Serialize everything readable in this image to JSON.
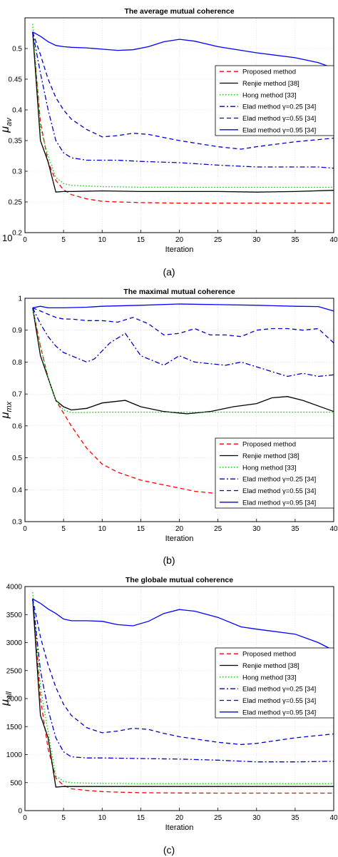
{
  "chart_data": [
    {
      "type": "line",
      "title": "The average mutual coherence",
      "xlabel": "Iteration",
      "ylabel": "μ_av",
      "caption": "(a)",
      "stray_text": "10",
      "xlim": [
        0,
        40
      ],
      "ylim": [
        0.2,
        0.55
      ],
      "xticks": [
        "0",
        "5",
        "10",
        "15",
        "20",
        "25",
        "30",
        "35",
        "40"
      ],
      "yticks": [
        "0.2",
        "0.25",
        "0.3",
        "0.35",
        "0.4",
        "0.45",
        "0.5"
      ],
      "grid": true,
      "legend_position": "right",
      "series": [
        {
          "name": "Proposed method",
          "color": "#ff0000",
          "dash": "dashed",
          "x": [
            1,
            2,
            3,
            4,
            5,
            6,
            8,
            10,
            12,
            15,
            20,
            25,
            30,
            35,
            40
          ],
          "y": [
            0.527,
            0.38,
            0.315,
            0.285,
            0.27,
            0.262,
            0.255,
            0.251,
            0.25,
            0.249,
            0.248,
            0.248,
            0.248,
            0.248,
            0.248
          ]
        },
        {
          "name": "Renjie method [38]",
          "color": "#000000",
          "dash": "solid",
          "x": [
            1,
            2,
            3,
            4,
            5,
            6,
            10,
            15,
            20,
            25,
            30,
            35,
            40
          ],
          "y": [
            0.527,
            0.35,
            0.315,
            0.266,
            0.267,
            0.267,
            0.268,
            0.267,
            0.267,
            0.267,
            0.266,
            0.267,
            0.269
          ]
        },
        {
          "name": "Hong method [33]",
          "color": "#00cc00",
          "dash": "dotted",
          "x": [
            1,
            2,
            3,
            4,
            5,
            6,
            8,
            10,
            15,
            20,
            25,
            30,
            35,
            40
          ],
          "y": [
            0.54,
            0.37,
            0.325,
            0.29,
            0.28,
            0.277,
            0.276,
            0.275,
            0.274,
            0.274,
            0.274,
            0.274,
            0.274,
            0.274
          ]
        },
        {
          "name": "Elad method γ=0.25 [34]",
          "color": "#0000cc",
          "dash": "dashdot",
          "x": [
            1,
            2,
            3,
            4,
            5,
            6,
            8,
            10,
            12,
            15,
            20,
            25,
            30,
            35,
            38,
            40
          ],
          "y": [
            0.527,
            0.46,
            0.4,
            0.35,
            0.33,
            0.322,
            0.318,
            0.318,
            0.318,
            0.316,
            0.314,
            0.31,
            0.307,
            0.307,
            0.307,
            0.305
          ]
        },
        {
          "name": "Elad method γ=0.55 [34]",
          "color": "#0000cc",
          "dash": "dashed",
          "x": [
            1,
            2,
            3,
            4,
            5,
            6,
            8,
            10,
            12,
            14,
            16,
            18,
            20,
            25,
            28,
            30,
            35,
            40
          ],
          "y": [
            0.527,
            0.49,
            0.45,
            0.42,
            0.4,
            0.385,
            0.368,
            0.356,
            0.358,
            0.362,
            0.36,
            0.355,
            0.35,
            0.34,
            0.336,
            0.34,
            0.348,
            0.354
          ]
        },
        {
          "name": "Elad method γ=0.95 [34]",
          "color": "#0000ff",
          "dash": "solid",
          "x": [
            1,
            2,
            3,
            4,
            5,
            6,
            8,
            10,
            12,
            14,
            16,
            18,
            20,
            22,
            25,
            30,
            35,
            38,
            40
          ],
          "y": [
            0.527,
            0.52,
            0.511,
            0.505,
            0.503,
            0.502,
            0.501,
            0.499,
            0.497,
            0.498,
            0.503,
            0.511,
            0.515,
            0.512,
            0.503,
            0.493,
            0.485,
            0.477,
            0.468
          ]
        }
      ]
    },
    {
      "type": "line",
      "title": "The maximal mutual coherence",
      "xlabel": "Iteration",
      "ylabel": "μ_mx",
      "caption": "(b)",
      "xlim": [
        0,
        40
      ],
      "ylim": [
        0.3,
        1
      ],
      "xticks": [
        "0",
        "5",
        "10",
        "15",
        "20",
        "25",
        "30",
        "35",
        "40"
      ],
      "yticks": [
        "0.3",
        "0.4",
        "0.5",
        "0.6",
        "0.7",
        "0.8",
        "0.9",
        "1"
      ],
      "grid": true,
      "legend_position": "bottom-right",
      "series": [
        {
          "name": "Proposed method",
          "color": "#ff0000",
          "dash": "dashed",
          "x": [
            1,
            2,
            3,
            4,
            5,
            6,
            8,
            10,
            12,
            15,
            18,
            20,
            22,
            25,
            30,
            35,
            40
          ],
          "y": [
            0.97,
            0.85,
            0.75,
            0.68,
            0.64,
            0.6,
            0.53,
            0.48,
            0.455,
            0.43,
            0.415,
            0.405,
            0.395,
            0.388,
            0.378,
            0.367,
            0.368
          ]
        },
        {
          "name": "Renjie method [38]",
          "color": "#000000",
          "dash": "solid",
          "x": [
            1,
            2,
            3,
            4,
            5,
            6,
            8,
            10,
            13,
            15,
            18,
            21,
            24,
            27,
            30,
            32,
            34,
            36,
            40
          ],
          "y": [
            0.97,
            0.82,
            0.75,
            0.68,
            0.66,
            0.65,
            0.655,
            0.672,
            0.68,
            0.66,
            0.645,
            0.638,
            0.645,
            0.66,
            0.67,
            0.688,
            0.692,
            0.68,
            0.645
          ]
        },
        {
          "name": "Hong method [33]",
          "color": "#00cc00",
          "dash": "dotted",
          "x": [
            1,
            2,
            3,
            4,
            5,
            6,
            8,
            10,
            15,
            20,
            25,
            30,
            35,
            40
          ],
          "y": [
            0.97,
            0.85,
            0.75,
            0.68,
            0.65,
            0.642,
            0.642,
            0.643,
            0.643,
            0.643,
            0.643,
            0.643,
            0.643,
            0.643
          ]
        },
        {
          "name": "Elad method γ=0.25 [34]",
          "color": "#0000cc",
          "dash": "dashdot",
          "x": [
            1,
            2,
            3,
            4,
            5,
            6,
            8,
            9,
            11,
            13,
            15,
            17,
            18,
            20,
            22,
            24,
            26,
            28,
            30,
            32,
            34,
            36,
            38,
            40
          ],
          "y": [
            0.97,
            0.92,
            0.88,
            0.85,
            0.83,
            0.82,
            0.8,
            0.81,
            0.86,
            0.89,
            0.82,
            0.8,
            0.79,
            0.82,
            0.8,
            0.795,
            0.79,
            0.8,
            0.785,
            0.77,
            0.755,
            0.765,
            0.755,
            0.76
          ]
        },
        {
          "name": "Elad method γ=0.55 [34]",
          "color": "#0000cc",
          "dash": "dashed",
          "x": [
            1,
            2,
            3,
            4,
            5,
            6,
            8,
            10,
            12,
            14,
            16,
            18,
            20,
            22,
            24,
            26,
            28,
            30,
            32,
            34,
            36,
            38,
            40
          ],
          "y": [
            0.97,
            0.96,
            0.95,
            0.94,
            0.935,
            0.935,
            0.93,
            0.93,
            0.925,
            0.94,
            0.92,
            0.885,
            0.89,
            0.905,
            0.885,
            0.885,
            0.88,
            0.9,
            0.905,
            0.905,
            0.9,
            0.905,
            0.86
          ]
        },
        {
          "name": "Elad method γ=0.95 [34]",
          "color": "#0000ff",
          "dash": "solid",
          "x": [
            1,
            2,
            3,
            5,
            8,
            10,
            15,
            20,
            25,
            30,
            35,
            38,
            40
          ],
          "y": [
            0.97,
            0.975,
            0.97,
            0.97,
            0.972,
            0.975,
            0.978,
            0.982,
            0.98,
            0.978,
            0.975,
            0.974,
            0.96
          ]
        }
      ]
    },
    {
      "type": "line",
      "title": "The globale mutual coherence",
      "xlabel": "Iteration",
      "ylabel": "μ_all",
      "caption": "(c)",
      "xlim": [
        0,
        40
      ],
      "ylim": [
        0,
        4000
      ],
      "xticks": [
        "0",
        "5",
        "10",
        "15",
        "20",
        "25",
        "30",
        "35",
        "40"
      ],
      "yticks": [
        "0",
        "500",
        "1000",
        "1500",
        "2000",
        "2500",
        "3000",
        "3500",
        "4000"
      ],
      "grid": true,
      "legend_position": "right",
      "series": [
        {
          "name": "Proposed method",
          "color": "#ff0000",
          "dash": "dashed",
          "x": [
            1,
            2,
            3,
            4,
            5,
            6,
            8,
            10,
            12,
            15,
            20,
            25,
            30,
            35,
            40
          ],
          "y": [
            3780,
            2000,
            1100,
            580,
            450,
            390,
            360,
            340,
            330,
            320,
            315,
            312,
            312,
            312,
            312
          ]
        },
        {
          "name": "Renjie method [38]",
          "color": "#000000",
          "dash": "solid",
          "x": [
            1,
            2,
            3,
            4,
            5,
            6,
            10,
            15,
            20,
            25,
            30,
            35,
            40
          ],
          "y": [
            3780,
            1700,
            1300,
            420,
            430,
            430,
            430,
            430,
            430,
            430,
            430,
            430,
            430
          ]
        },
        {
          "name": "Hong method [33]",
          "color": "#00cc00",
          "dash": "dotted",
          "x": [
            1,
            2,
            3,
            4,
            5,
            6,
            8,
            10,
            15,
            20,
            25,
            30,
            35,
            40
          ],
          "y": [
            3900,
            2200,
            1400,
            620,
            520,
            500,
            490,
            485,
            480,
            480,
            480,
            480,
            480,
            480
          ]
        },
        {
          "name": "Elad method γ=0.25 [34]",
          "color": "#0000cc",
          "dash": "dashdot",
          "x": [
            1,
            2,
            3,
            4,
            5,
            6,
            8,
            10,
            15,
            20,
            25,
            30,
            35,
            40
          ],
          "y": [
            3780,
            2500,
            1800,
            1300,
            1050,
            960,
            940,
            940,
            930,
            920,
            900,
            870,
            870,
            880
          ]
        },
        {
          "name": "Elad method γ=0.55 [34]",
          "color": "#0000cc",
          "dash": "dashed",
          "x": [
            1,
            2,
            3,
            4,
            5,
            6,
            8,
            10,
            12,
            14,
            16,
            18,
            20,
            25,
            28,
            30,
            35,
            40
          ],
          "y": [
            3780,
            3100,
            2600,
            2200,
            1900,
            1700,
            1480,
            1390,
            1420,
            1470,
            1450,
            1380,
            1320,
            1220,
            1180,
            1200,
            1300,
            1370
          ]
        },
        {
          "name": "Elad method γ=0.95 [34]",
          "color": "#0000ff",
          "dash": "solid",
          "x": [
            1,
            2,
            3,
            4,
            5,
            6,
            8,
            10,
            12,
            14,
            16,
            18,
            20,
            22,
            25,
            28,
            30,
            35,
            38,
            40
          ],
          "y": [
            3780,
            3700,
            3600,
            3520,
            3420,
            3390,
            3390,
            3380,
            3320,
            3300,
            3380,
            3520,
            3590,
            3560,
            3450,
            3280,
            3240,
            3150,
            3000,
            2860
          ]
        }
      ]
    }
  ]
}
